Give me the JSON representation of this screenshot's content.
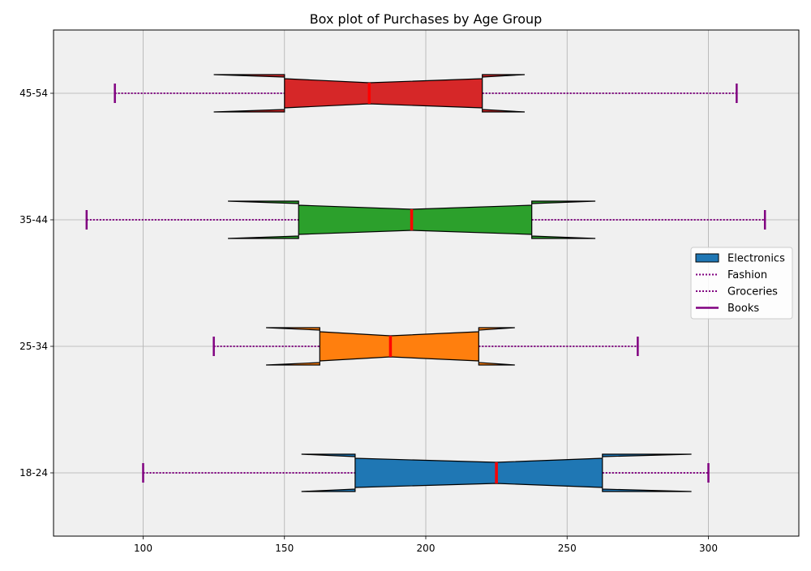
{
  "chart_data": {
    "type": "boxplot",
    "orientation": "horizontal",
    "notched": true,
    "title": "Box plot of Purchases by Age Group",
    "xlabel": "",
    "ylabel": "",
    "xlim": [
      68,
      1332
    ],
    "xticks": [
      100,
      150,
      200,
      250,
      300
    ],
    "grid": true,
    "background": "#f0f0f0",
    "legend_position": "center-right",
    "whisker_color": "#800080",
    "median_color": "#ff0000",
    "categories": [
      "18-24",
      "25-34",
      "35-44",
      "45-54"
    ],
    "boxes": [
      {
        "category": "18-24",
        "color": "#1f77b4",
        "whisker_low": 100,
        "q1": 175,
        "median": 225,
        "q3": 262.5,
        "whisker_high": 300,
        "notch_low": 156,
        "notch_high": 294
      },
      {
        "category": "25-34",
        "color": "#ff7f0e",
        "whisker_low": 125,
        "q1": 162.5,
        "median": 187.5,
        "q3": 218.75,
        "whisker_high": 275,
        "notch_low": 143.5,
        "notch_high": 231.5
      },
      {
        "category": "35-44",
        "color": "#2ca02c",
        "whisker_low": 80,
        "q1": 155,
        "median": 195,
        "q3": 237.5,
        "whisker_high": 320,
        "notch_low": 130,
        "notch_high": 260
      },
      {
        "category": "45-54",
        "color": "#d62728",
        "whisker_low": 90,
        "q1": 150,
        "median": 180,
        "q3": 220,
        "whisker_high": 310,
        "notch_low": 125,
        "notch_high": 235
      }
    ],
    "legend": [
      {
        "label": "Electronics",
        "style": "patch",
        "color": "#1f77b4"
      },
      {
        "label": "Fashion",
        "style": "dotted",
        "color": "#800080"
      },
      {
        "label": "Groceries",
        "style": "dotted",
        "color": "#800080"
      },
      {
        "label": "Books",
        "style": "solid",
        "color": "#800080"
      }
    ]
  }
}
